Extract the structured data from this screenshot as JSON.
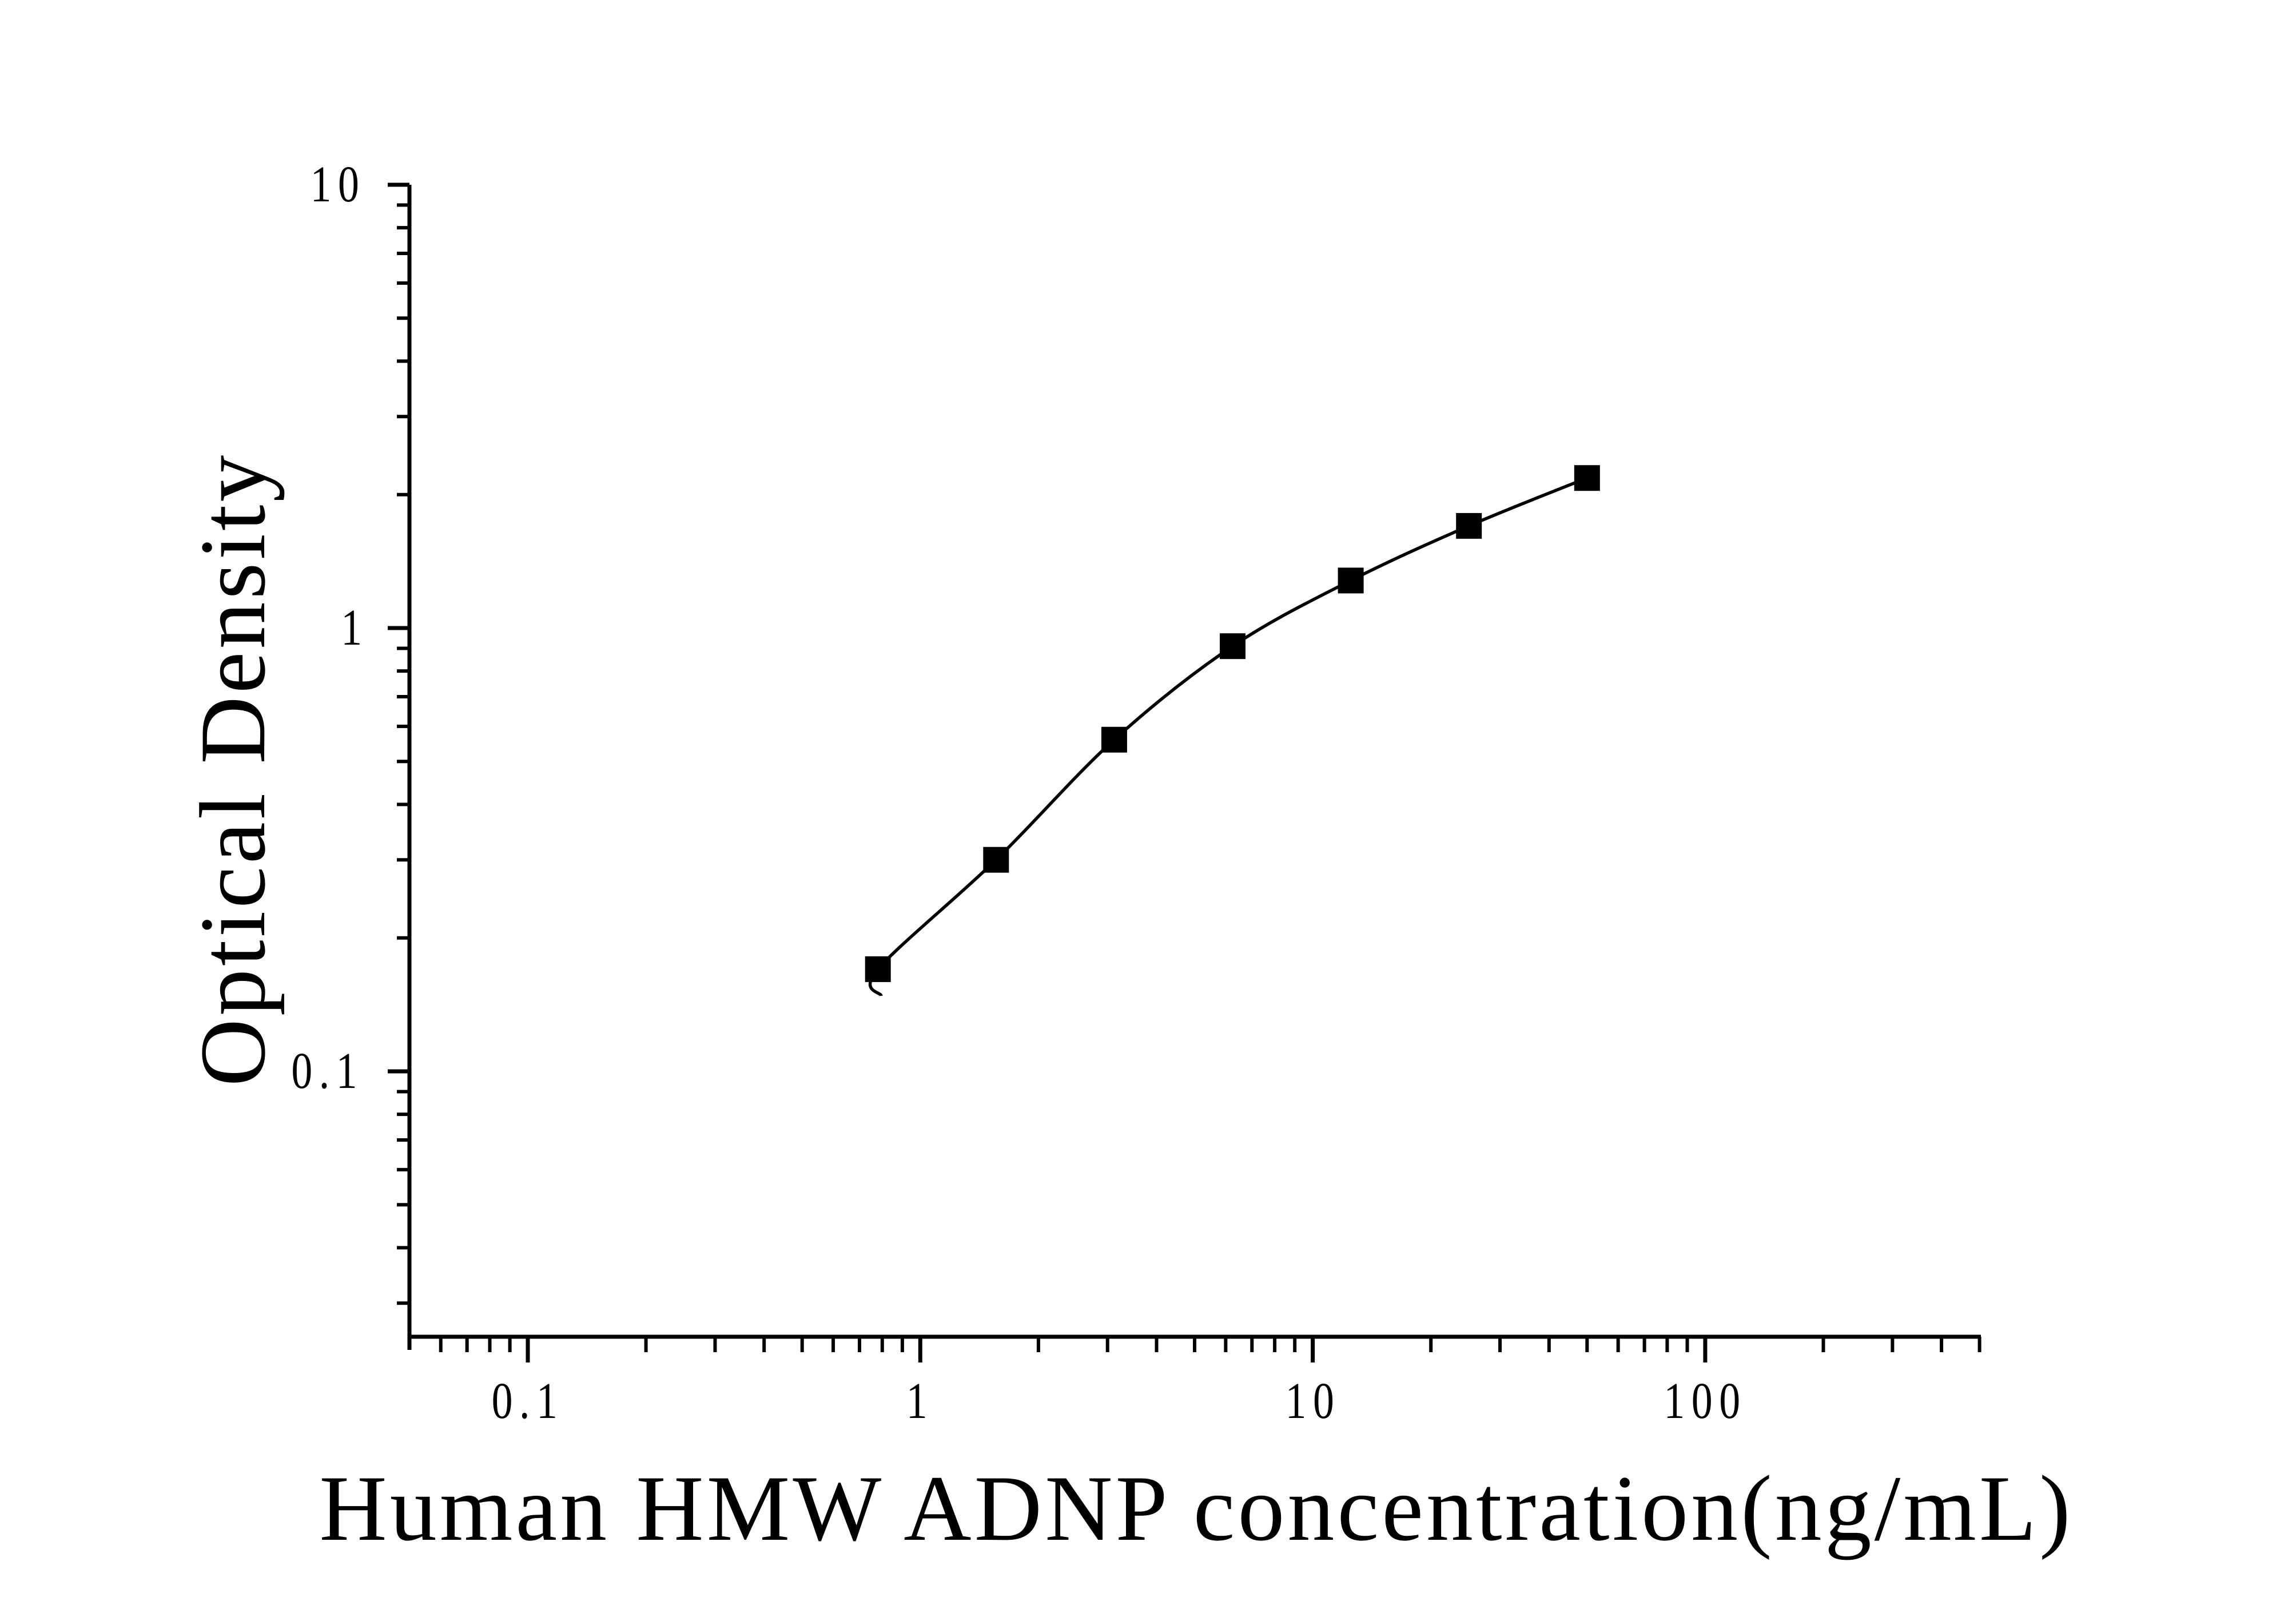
{
  "figure": {
    "background": "#ffffff",
    "ink_color": "#000000"
  },
  "chart_data": {
    "type": "scatter",
    "title": "",
    "xlabel": "Human HMW ADNP concentration(ng/mL)",
    "ylabel": "Optical Density",
    "x_scale": "log",
    "y_scale": "log",
    "xlim": [
      0.05,
      500
    ],
    "ylim": [
      0.024,
      10
    ],
    "grid": false,
    "legend": false,
    "marker": "filled-square",
    "marker_color": "#000000",
    "curve_color": "#000000",
    "x_major_ticks": [
      0.1,
      1,
      10,
      100
    ],
    "x_major_tick_labels": [
      "0.1",
      "1",
      "10",
      "100"
    ],
    "y_major_ticks": [
      10,
      1,
      0.1
    ],
    "y_major_tick_labels": [
      "10",
      "1",
      "0.1"
    ],
    "series": [
      {
        "x": [
          0.78,
          1.56,
          3.12,
          6.25,
          12.5,
          25,
          50
        ],
        "y": [
          0.17,
          0.3,
          0.56,
          0.91,
          1.28,
          1.7,
          2.18
        ]
      }
    ],
    "fit_curve_tail_point": {
      "x": 0.795,
      "y": 0.148
    }
  }
}
